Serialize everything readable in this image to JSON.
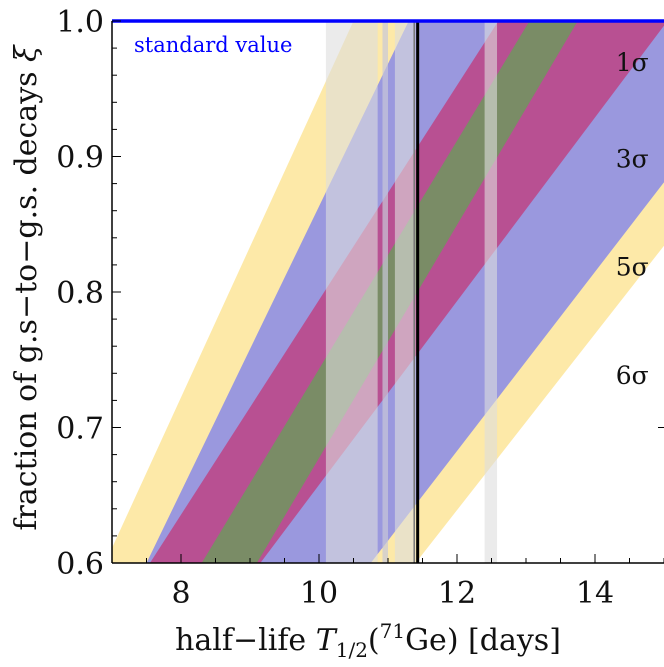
{
  "chart_data": {
    "type": "area",
    "xlabel_parts": {
      "prefix": "half−life ",
      "symbol": "T",
      "subscript": "1/2",
      "open_paren": "(",
      "superscript": "71",
      "element": "Ge",
      "suffix": ") [days]"
    },
    "ylabel_parts": {
      "text": "fraction of g.s−to−g.s. decays ",
      "symbol": "ξ"
    },
    "xlim": [
      7.0,
      15.0
    ],
    "ylim": [
      0.6,
      1.0
    ],
    "x_ticks": [
      8,
      10,
      12,
      14
    ],
    "x_tick_labels": [
      "8",
      "10",
      "12",
      "14"
    ],
    "y_ticks": [
      0.6,
      0.7,
      0.8,
      0.9,
      1.0
    ],
    "y_tick_labels": [
      "0.6",
      "0.7",
      "0.8",
      "0.9",
      "1.0"
    ],
    "reference_line": {
      "y": 1.0,
      "label": "standard value",
      "color": "#0000ff"
    },
    "bands": [
      {
        "level": "6σ",
        "color": "#fde9a8",
        "lower_line": {
          "x_at_y_0.6": 11.4,
          "x_at_y_1.0": 17.55
        },
        "upper_line": {
          "x_at_y_0.6": 6.9,
          "x_at_y_1.0": 10.5
        }
      },
      {
        "level": "5σ",
        "color": "#9a98de",
        "lower_line": {
          "x_at_y_0.6": 10.75,
          "x_at_y_1.0": 16.8
        },
        "upper_line": {
          "x_at_y_0.6": 7.5,
          "x_at_y_1.0": 11.3
        }
      },
      {
        "level": "3σ",
        "color": "#b85092",
        "lower_line": {
          "x_at_y_0.6": 9.15,
          "x_at_y_1.0": 15.05
        },
        "upper_line": {
          "x_at_y_0.6": 7.55,
          "x_at_y_1.0": 12.6
        }
      },
      {
        "level": "1σ",
        "color": "#7a8c66",
        "lower_line": {
          "x_at_y_0.6": 9.1,
          "x_at_y_1.0": 13.75
        },
        "upper_line": {
          "x_at_y_0.6": 8.3,
          "x_at_y_1.0": 13.05
        }
      }
    ],
    "band_labels": [
      {
        "text": "1σ",
        "x": 14.3,
        "y": 0.963
      },
      {
        "text": "3σ",
        "x": 14.3,
        "y": 0.892
      },
      {
        "text": "5σ",
        "x": 14.3,
        "y": 0.812
      },
      {
        "text": "6σ",
        "x": 14.3,
        "y": 0.732
      }
    ],
    "vertical_bands": [
      {
        "x0": 10.1,
        "x1": 10.85,
        "color": "#dddddd",
        "opacity": 0.6
      },
      {
        "x0": 10.92,
        "x1": 11.0,
        "color": "#c8c8d8",
        "opacity": 0.7
      },
      {
        "x0": 11.1,
        "x1": 11.4,
        "color": "#dddddd",
        "opacity": 0.6
      },
      {
        "x0": 12.4,
        "x1": 12.58,
        "color": "#dddddd",
        "opacity": 0.6
      }
    ],
    "vertical_lines": [
      {
        "x": 11.43,
        "color": "#000000",
        "width": 3
      },
      {
        "x": 11.38,
        "color": "#777777",
        "width": 1.5
      }
    ],
    "grid": false,
    "legend": "none"
  }
}
